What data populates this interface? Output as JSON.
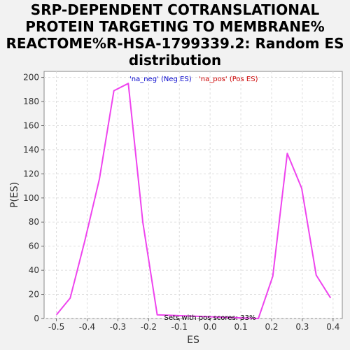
{
  "chart_data": {
    "type": "line",
    "title_lines": [
      "SRP-DEPENDENT COTRANSLATIONAL",
      "PROTEIN TARGETING TO MEMBRANE%",
      "REACTOME%R-HSA-1799339.2: Random ES",
      "distribution"
    ],
    "xlabel": "ES",
    "ylabel": "P(ES)",
    "xlim": [
      -0.54,
      0.43
    ],
    "ylim": [
      0,
      205
    ],
    "xticks": [
      -0.5,
      -0.4,
      -0.3,
      -0.2,
      -0.1,
      0.0,
      0.1,
      0.2,
      0.3,
      0.4
    ],
    "xtick_labels": [
      "-0.5",
      "-0.4",
      "-0.3",
      "-0.2",
      "-0.1",
      "0.0",
      "0.1",
      "0.2",
      "0.3",
      "0.4"
    ],
    "yticks": [
      0,
      20,
      40,
      60,
      80,
      100,
      120,
      140,
      160,
      180,
      200
    ],
    "ytick_labels": [
      "0",
      "20",
      "40",
      "60",
      "80",
      "100",
      "120",
      "140",
      "160",
      "180",
      "200"
    ],
    "grid": true,
    "legend": [
      {
        "label": "'na_neg' (Neg ES)",
        "color": "#0000cc"
      },
      {
        "label": "'na_pos' (Pos ES)",
        "color": "#cc0000"
      }
    ],
    "annotation": "Sets with pos scores: 33%",
    "series_color": "#ee44ee",
    "series": [
      {
        "x": [
          -0.5,
          -0.455,
          -0.408,
          -0.36,
          -0.313,
          -0.266,
          -0.219,
          -0.172,
          0.157,
          0.204,
          0.251,
          0.298,
          0.345,
          0.392
        ],
        "y": [
          3,
          17,
          64,
          116,
          189,
          195,
          80,
          3,
          0,
          35,
          137,
          108,
          36,
          17
        ]
      }
    ]
  }
}
